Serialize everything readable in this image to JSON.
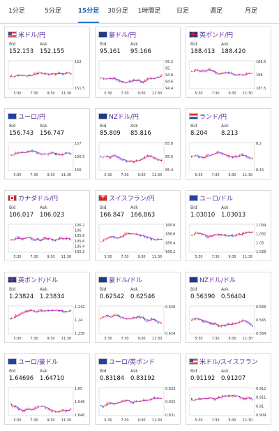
{
  "tabs": [
    "1分足",
    "5分足",
    "15分足",
    "30分足",
    "1時間足",
    "日足",
    "週足",
    "月足"
  ],
  "active_tab": 2,
  "labels": {
    "bid": "Bid",
    "ask": "Ask"
  },
  "x_ticks": [
    "5:30",
    "7:30",
    "9:30",
    "11:30"
  ],
  "pairs": [
    {
      "name": "米ドル/円",
      "flag": "us",
      "bid": "152.153",
      "ask": "152.155",
      "yticks": [
        "152",
        "151.5"
      ]
    },
    {
      "name": "豪ドル/円",
      "flag": "au",
      "bid": "95.161",
      "ask": "95.166",
      "yticks": [
        "95.2",
        "95",
        "94.8",
        "94.6",
        "94.4"
      ]
    },
    {
      "name": "英ポンド/円",
      "flag": "gb",
      "bid": "188.413",
      "ask": "188.420",
      "yticks": [
        "188.5",
        "188",
        "187.5"
      ]
    },
    {
      "name": "ユーロ/円",
      "flag": "eu",
      "bid": "156.743",
      "ask": "156.747",
      "yticks": [
        "157",
        "156.5",
        "156"
      ]
    },
    {
      "name": "NZドル/円",
      "flag": "nz",
      "bid": "85.809",
      "ask": "85.816",
      "yticks": [
        "85.8",
        "85.6",
        "85.4"
      ]
    },
    {
      "name": "ランド/円",
      "flag": "za",
      "bid": "8.204",
      "ask": "8.213",
      "yticks": [
        "8.2",
        "8.15"
      ]
    },
    {
      "name": "カナダドル/円",
      "flag": "ca",
      "bid": "106.017",
      "ask": "106.023",
      "yticks": [
        "106.2",
        "106",
        "105.8",
        "105.6",
        "105.4",
        "105.2"
      ]
    },
    {
      "name": "スイスフラン/円",
      "flag": "ch",
      "bid": "166.847",
      "ask": "166.863",
      "yticks": [
        "166.8",
        "166.6",
        "166.4",
        "166.2"
      ]
    },
    {
      "name": "ユーロ/ドル",
      "flag": "eu",
      "bid": "1.03010",
      "ask": "1.03013",
      "yticks": [
        "1.034",
        "1.032",
        "1.03",
        "1.028"
      ]
    },
    {
      "name": "英ポンド/ドル",
      "flag": "gb",
      "bid": "1.23824",
      "ask": "1.23834",
      "yticks": [
        "1.242",
        "1.24",
        "1.238"
      ]
    },
    {
      "name": "豪ドル/ドル",
      "flag": "au",
      "bid": "0.62542",
      "ask": "0.62546",
      "yticks": [
        "0.626",
        "0.624"
      ]
    },
    {
      "name": "NZドル/ドル",
      "flag": "nz",
      "bid": "0.56390",
      "ask": "0.56404",
      "yticks": [
        "0.566",
        "0.565",
        "0.564"
      ]
    },
    {
      "name": "ユーロ/豪ドル",
      "flag": "eu",
      "bid": "1.64696",
      "ask": "1.64710",
      "yticks": [
        "1.65",
        "1.648",
        "1.646"
      ]
    },
    {
      "name": "ユーロ/英ポンド",
      "flag": "eu",
      "bid": "0.83184",
      "ask": "0.83192",
      "yticks": [
        "0.833",
        "0.832",
        "0.831"
      ]
    },
    {
      "name": "米ドル/スイスフラン",
      "flag": "us",
      "bid": "0.91192",
      "ask": "0.91207",
      "yticks": [
        "0.912",
        "0.911",
        "0.91",
        "0.909"
      ]
    }
  ],
  "colors": {
    "up": "#e03030",
    "down": "#3a5bd0",
    "ma": "#d020c0",
    "signal": "#40a0e0",
    "pair_text": "#5a2a9a",
    "active_tab": "#1a5fb4"
  },
  "chart_data": {
    "type": "candlestick",
    "x_ticks": [
      "5:30",
      "7:30",
      "9:30",
      "11:30"
    ]
  }
}
